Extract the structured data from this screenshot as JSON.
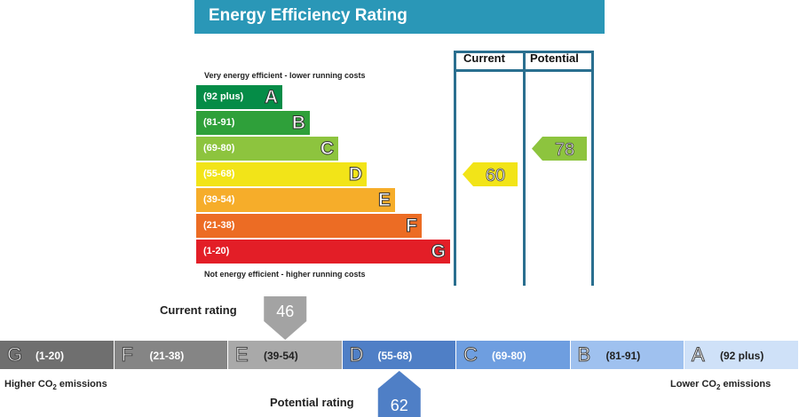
{
  "title": "Energy Efficiency Rating",
  "chart_data": [
    {
      "type": "bar",
      "title": "Energy Efficiency Rating",
      "top_note": "Very energy efficient - lower running costs",
      "bottom_note": "Not energy efficient - higher running costs",
      "columns": [
        "Current",
        "Potential"
      ],
      "bands": [
        {
          "letter": "A",
          "range": "(92 plus)",
          "color": "#058c47"
        },
        {
          "letter": "B",
          "range": "(81-91)",
          "color": "#2fa03a"
        },
        {
          "letter": "C",
          "range": "(69-80)",
          "color": "#8dc43e"
        },
        {
          "letter": "D",
          "range": "(55-68)",
          "color": "#f2e418"
        },
        {
          "letter": "E",
          "range": "(39-54)",
          "color": "#f6ad2a"
        },
        {
          "letter": "F",
          "range": "(21-38)",
          "color": "#ec6c24"
        },
        {
          "letter": "G",
          "range": "(1-20)",
          "color": "#e31e27"
        }
      ],
      "current": {
        "value": 60,
        "color": "#f2e418"
      },
      "potential": {
        "value": 78,
        "color": "#8dc43e"
      }
    },
    {
      "type": "bar",
      "segments": [
        {
          "letter": "G",
          "range": "(1-20)",
          "color": "#6f6f6f",
          "text_color": "#ffffff"
        },
        {
          "letter": "F",
          "range": "(21-38)",
          "color": "#858585",
          "text_color": "#ffffff"
        },
        {
          "letter": "E",
          "range": "(39-54)",
          "color": "#a9a9a9",
          "text_color": "#222222"
        },
        {
          "letter": "D",
          "range": "(55-68)",
          "color": "#4f7fc6",
          "text_color": "#ffffff"
        },
        {
          "letter": "C",
          "range": "(69-80)",
          "color": "#6e9ee0",
          "text_color": "#ffffff"
        },
        {
          "letter": "B",
          "range": "(81-91)",
          "color": "#9fc1ef",
          "text_color": "#222222"
        },
        {
          "letter": "A",
          "range": "(92 plus)",
          "color": "#cfe1f8",
          "text_color": "#222222"
        }
      ],
      "current_label": "Current rating",
      "current_value": 46,
      "potential_label": "Potential rating",
      "potential_value": 62,
      "left_label": "Higher CO",
      "left_label_sub": "2",
      "left_label_tail": " emissions",
      "right_label": "Lower CO",
      "right_label_sub": "2",
      "right_label_tail": " emissions"
    }
  ]
}
